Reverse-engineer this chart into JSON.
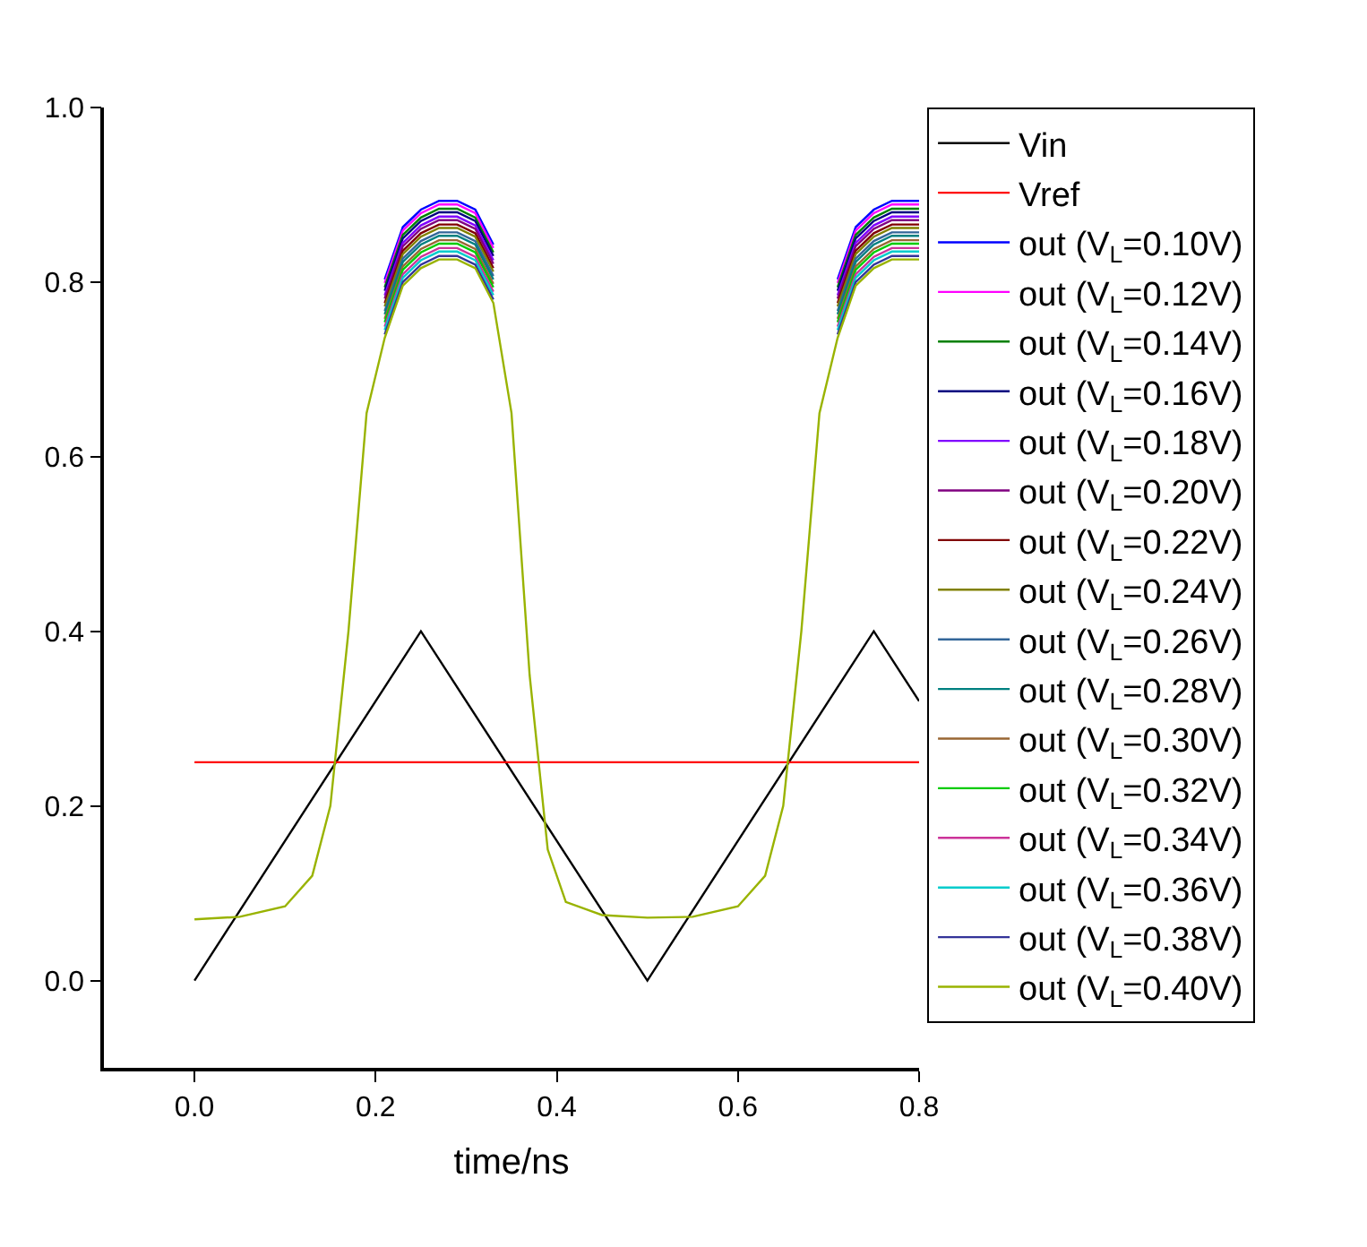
{
  "chart_data": {
    "type": "line",
    "xlabel": "time/ns",
    "xlim": [
      -0.1,
      0.8
    ],
    "xticks": [
      {
        "value": 0,
        "label": "0.0"
      },
      0.2,
      0.4,
      0.6,
      0.8
    ],
    "ylim": [
      -0.1,
      1.0
    ],
    "yticks": [
      {
        "value": 0,
        "label": "0.0"
      },
      0.2,
      0.4,
      0.6,
      0.8,
      {
        "value": 1,
        "label": "1.0"
      }
    ],
    "legend": "right",
    "marker": "none",
    "line_style": "solid",
    "x": [
      0,
      0.05,
      0.1,
      0.13,
      0.15,
      0.17,
      0.19,
      0.21,
      0.23,
      0.25,
      0.27,
      0.29,
      0.31,
      0.33,
      0.35,
      0.37,
      0.39,
      0.41,
      0.45,
      0.5,
      0.55,
      0.6,
      0.63,
      0.65,
      0.67,
      0.69,
      0.71,
      0.73,
      0.75,
      0.77,
      0.79,
      0.8
    ],
    "series": [
      {
        "name": "Vin",
        "color": "#000000",
        "x": [
          0,
          0.25,
          0.5,
          0.75,
          0.8
        ],
        "values": [
          0,
          0.4,
          0,
          0.4,
          0.32
        ]
      },
      {
        "name": "Vref",
        "color": "#ff0000",
        "x": [
          0,
          0.8
        ],
        "values": [
          0.25,
          0.25
        ]
      },
      {
        "name": "out (V$_{L}$=0.10V)",
        "color": "#0000ff",
        "values": [
          null,
          null,
          null,
          null,
          null,
          null,
          null,
          0.803,
          0.863,
          0.883,
          0.893,
          0.893,
          0.883,
          0.843,
          null,
          null,
          null,
          null,
          null,
          null,
          null,
          null,
          null,
          null,
          null,
          null,
          0.803,
          0.863,
          0.883,
          0.893,
          0.893,
          0.893
        ]
      },
      {
        "name": "out (V$_{L}$=0.12V)",
        "color": "#ff00ff",
        "values": [
          null,
          null,
          null,
          null,
          null,
          null,
          null,
          0.799,
          0.859,
          0.879,
          0.889,
          0.889,
          0.879,
          0.839,
          null,
          null,
          null,
          null,
          null,
          null,
          null,
          null,
          null,
          null,
          null,
          null,
          0.799,
          0.859,
          0.879,
          0.889,
          0.889,
          0.889
        ]
      },
      {
        "name": "out (V$_{L}$=0.14V)",
        "color": "#008000",
        "values": [
          null,
          null,
          null,
          null,
          null,
          null,
          null,
          0.794,
          0.854,
          0.874,
          0.884,
          0.884,
          0.874,
          0.834,
          null,
          null,
          null,
          null,
          null,
          null,
          null,
          null,
          null,
          null,
          null,
          null,
          0.794,
          0.854,
          0.874,
          0.884,
          0.884,
          0.884
        ]
      },
      {
        "name": "out (V$_{L}$=0.16V)",
        "color": "#000080",
        "values": [
          null,
          null,
          null,
          null,
          null,
          null,
          null,
          0.79,
          0.85,
          0.87,
          0.88,
          0.88,
          0.87,
          0.83,
          null,
          null,
          null,
          null,
          null,
          null,
          null,
          null,
          null,
          null,
          null,
          null,
          0.79,
          0.85,
          0.87,
          0.88,
          0.88,
          0.88
        ]
      },
      {
        "name": "out (V$_{L}$=0.18V)",
        "color": "#8000ff",
        "values": [
          null,
          null,
          null,
          null,
          null,
          null,
          null,
          0.785,
          0.845,
          0.865,
          0.875,
          0.875,
          0.865,
          0.825,
          null,
          null,
          null,
          null,
          null,
          null,
          null,
          null,
          null,
          null,
          null,
          null,
          0.785,
          0.845,
          0.865,
          0.875,
          0.875,
          0.875
        ]
      },
      {
        "name": "out (V$_{L}$=0.20V)",
        "color": "#800080",
        "values": [
          null,
          null,
          null,
          null,
          null,
          null,
          null,
          0.781,
          0.841,
          0.861,
          0.871,
          0.871,
          0.861,
          0.821,
          null,
          null,
          null,
          null,
          null,
          null,
          null,
          null,
          null,
          null,
          null,
          null,
          0.781,
          0.841,
          0.861,
          0.871,
          0.871,
          0.871
        ]
      },
      {
        "name": "out (V$_{L}$=0.22V)",
        "color": "#800000",
        "values": [
          null,
          null,
          null,
          null,
          null,
          null,
          null,
          0.776,
          0.836,
          0.856,
          0.866,
          0.866,
          0.856,
          0.816,
          null,
          null,
          null,
          null,
          null,
          null,
          null,
          null,
          null,
          null,
          null,
          null,
          0.776,
          0.836,
          0.856,
          0.866,
          0.866,
          0.866
        ]
      },
      {
        "name": "out (V$_{L}$=0.24V)",
        "color": "#808000",
        "values": [
          null,
          null,
          null,
          null,
          null,
          null,
          null,
          0.772,
          0.832,
          0.852,
          0.862,
          0.862,
          0.852,
          0.812,
          null,
          null,
          null,
          null,
          null,
          null,
          null,
          null,
          null,
          null,
          null,
          null,
          0.772,
          0.832,
          0.852,
          0.862,
          0.862,
          0.862
        ]
      },
      {
        "name": "out (V$_{L}$=0.26V)",
        "color": "#336699",
        "values": [
          null,
          null,
          null,
          null,
          null,
          null,
          null,
          0.767,
          0.827,
          0.847,
          0.857,
          0.857,
          0.847,
          0.807,
          null,
          null,
          null,
          null,
          null,
          null,
          null,
          null,
          null,
          null,
          null,
          null,
          0.767,
          0.827,
          0.847,
          0.857,
          0.857,
          0.857
        ]
      },
      {
        "name": "out (V$_{L}$=0.28V)",
        "color": "#008080",
        "values": [
          null,
          null,
          null,
          null,
          null,
          null,
          null,
          0.763,
          0.823,
          0.843,
          0.853,
          0.853,
          0.843,
          0.803,
          null,
          null,
          null,
          null,
          null,
          null,
          null,
          null,
          null,
          null,
          null,
          null,
          0.763,
          0.823,
          0.843,
          0.853,
          0.853,
          0.853
        ]
      },
      {
        "name": "out (V$_{L}$=0.30V)",
        "color": "#996633",
        "values": [
          null,
          null,
          null,
          null,
          null,
          null,
          null,
          0.758,
          0.818,
          0.838,
          0.848,
          0.848,
          0.838,
          0.798,
          null,
          null,
          null,
          null,
          null,
          null,
          null,
          null,
          null,
          null,
          null,
          null,
          0.758,
          0.818,
          0.838,
          0.848,
          0.848,
          0.848
        ]
      },
      {
        "name": "out (V$_{L}$=0.32V)",
        "color": "#00cc00",
        "values": [
          null,
          null,
          null,
          null,
          null,
          null,
          null,
          0.754,
          0.814,
          0.834,
          0.844,
          0.844,
          0.834,
          0.794,
          null,
          null,
          null,
          null,
          null,
          null,
          null,
          null,
          null,
          null,
          null,
          null,
          0.754,
          0.814,
          0.834,
          0.844,
          0.844,
          0.844
        ]
      },
      {
        "name": "out (V$_{L}$=0.34V)",
        "color": "#cc3399",
        "values": [
          null,
          null,
          null,
          null,
          null,
          null,
          null,
          0.749,
          0.809,
          0.829,
          0.839,
          0.839,
          0.829,
          0.789,
          null,
          null,
          null,
          null,
          null,
          null,
          null,
          null,
          null,
          null,
          null,
          null,
          0.749,
          0.809,
          0.829,
          0.839,
          0.839,
          0.839
        ]
      },
      {
        "name": "out (V$_{L}$=0.36V)",
        "color": "#00cccc",
        "values": [
          null,
          null,
          null,
          null,
          null,
          null,
          null,
          0.745,
          0.805,
          0.825,
          0.835,
          0.835,
          0.825,
          0.785,
          null,
          null,
          null,
          null,
          null,
          null,
          null,
          null,
          null,
          null,
          null,
          null,
          0.745,
          0.805,
          0.825,
          0.835,
          0.835,
          0.835
        ]
      },
      {
        "name": "out (V$_{L}$=0.38V)",
        "color": "#333399",
        "values": [
          null,
          null,
          null,
          null,
          null,
          null,
          null,
          0.74,
          0.8,
          0.82,
          0.83,
          0.83,
          0.82,
          0.78,
          null,
          null,
          null,
          null,
          null,
          null,
          null,
          null,
          null,
          null,
          null,
          null,
          0.74,
          0.8,
          0.82,
          0.83,
          0.83,
          0.83
        ]
      },
      {
        "name": "out (V$_{L}$=0.40V)",
        "color": "#99b300",
        "values": [
          0.07,
          0.073,
          0.085,
          0.12,
          0.2,
          0.4,
          0.65,
          0.736,
          0.796,
          0.816,
          0.826,
          0.826,
          0.816,
          0.776,
          0.65,
          0.35,
          0.15,
          0.09,
          0.075,
          0.072,
          0.073,
          0.085,
          0.12,
          0.2,
          0.4,
          0.65,
          0.736,
          0.796,
          0.816,
          0.826,
          0.826,
          0.826
        ]
      }
    ]
  }
}
